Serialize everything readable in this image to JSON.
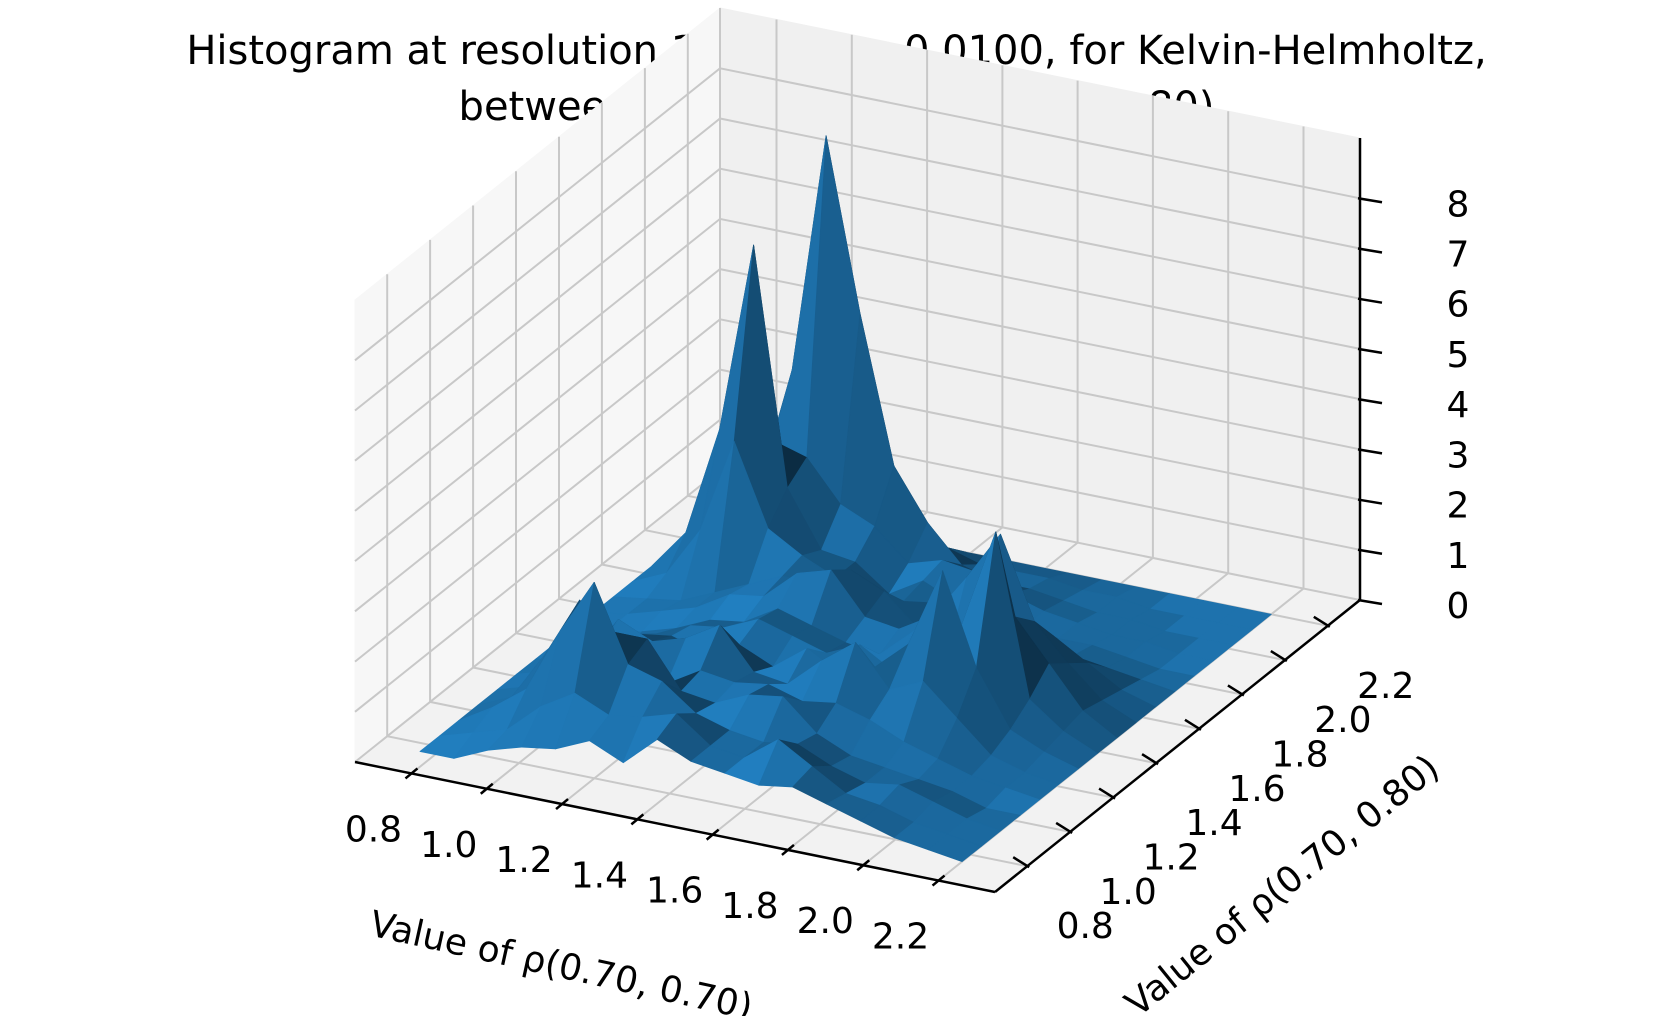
{
  "chart_data": {
    "type": "surface",
    "title_line1": "Histogram at resolution 1024, , ε = 0.0100, for Kelvin-Helmholtz,",
    "title_line2": "between (0.70, 0.70) and (0.70, 0.80)",
    "xlabel": "Value of ρ(0.70, 0.70)",
    "ylabel": "Value of ρ(0.70, 0.80)",
    "xlim": [
      0.65,
      2.35
    ],
    "ylim": [
      0.65,
      2.35
    ],
    "zlim": [
      0,
      9.2
    ],
    "x_ticks": [
      0.8,
      1.0,
      1.2,
      1.4,
      1.6,
      1.8,
      2.0,
      2.2
    ],
    "x_tick_labels": [
      "0.8",
      "1.0",
      "1.2",
      "1.4",
      "1.6",
      "1.8",
      "2.0",
      "2.2"
    ],
    "y_ticks": [
      0.8,
      1.0,
      1.2,
      1.4,
      1.6,
      1.8,
      2.0,
      2.2
    ],
    "y_tick_labels": [
      "0.8",
      "1.0",
      "1.2",
      "1.4",
      "1.6",
      "1.8",
      "2.0",
      "2.2"
    ],
    "z_ticks": [
      0,
      1,
      2,
      3,
      4,
      5,
      6,
      7,
      8
    ],
    "z_tick_labels": [
      "0",
      "1",
      "2",
      "3",
      "4",
      "5",
      "6",
      "7",
      "8"
    ],
    "grid": true,
    "surface_color": "#1f77b4",
    "grid_x": [
      0.76,
      0.85,
      0.94,
      1.03,
      1.12,
      1.21,
      1.3,
      1.39,
      1.48,
      1.57,
      1.66,
      1.75,
      1.84,
      1.93,
      2.02,
      2.11,
      2.2
    ],
    "grid_y": [
      0.76,
      0.85,
      0.94,
      1.03,
      1.12,
      1.21,
      1.3,
      1.39,
      1.48,
      1.57,
      1.66,
      1.75,
      1.84,
      1.93,
      2.02,
      2.11,
      2.2
    ],
    "z_values": [
      [
        0,
        0,
        0.3,
        0.5,
        0.6,
        0.9,
        0.6,
        1.2,
        0.9,
        0.8,
        0.7,
        0.8,
        0.6,
        0.4,
        0.2,
        0.1,
        0
      ],
      [
        0,
        0.2,
        0.4,
        1.0,
        1.4,
        1.1,
        1.2,
        1.4,
        0.9,
        0.8,
        1.3,
        0.9,
        0.5,
        0.4,
        0.2,
        0.1,
        0
      ],
      [
        0,
        0.4,
        0.9,
        2.2,
        3.3,
        1.8,
        1.6,
        1.1,
        0.9,
        0.8,
        0.9,
        0.6,
        0.4,
        0.5,
        0.3,
        0.1,
        0
      ],
      [
        0,
        0.3,
        1.3,
        2.5,
        2.0,
        2.0,
        1.1,
        1.0,
        1.3,
        1.4,
        0.8,
        0.5,
        0.4,
        0.3,
        0.2,
        0,
        0
      ],
      [
        0,
        0.2,
        0.9,
        1.2,
        1.4,
        0.8,
        1.2,
        1.1,
        1.2,
        1.0,
        1.1,
        0.9,
        0.6,
        0.4,
        0.2,
        0.1,
        0
      ],
      [
        0,
        0.2,
        0.5,
        1.5,
        1.2,
        1.4,
        1.8,
        1.0,
        0.9,
        1.5,
        2.0,
        1.2,
        1.5,
        0.9,
        0.3,
        0.1,
        0
      ],
      [
        0,
        0.1,
        0.3,
        0.9,
        1.0,
        0.8,
        1.1,
        0.8,
        1.3,
        0.9,
        1.2,
        1.8,
        3.4,
        1.6,
        0.5,
        0.2,
        0
      ],
      [
        0,
        0.1,
        0.2,
        0.6,
        0.9,
        1.0,
        1.3,
        1.1,
        0.9,
        1.2,
        0.8,
        1.5,
        2.0,
        4.0,
        0.8,
        0.3,
        0
      ],
      [
        0,
        0.1,
        0.2,
        0.4,
        0.7,
        0.8,
        1.2,
        1.0,
        0.8,
        0.7,
        1.3,
        1.0,
        1.7,
        2.0,
        1.2,
        0.4,
        0
      ],
      [
        0,
        0.1,
        0.3,
        0.5,
        0.9,
        1.0,
        1.6,
        1.8,
        1.0,
        0.9,
        1.3,
        2.2,
        3.2,
        1.6,
        0.9,
        0.3,
        0
      ],
      [
        0,
        0.1,
        0.2,
        0.5,
        0.8,
        1.1,
        1.1,
        1.5,
        1.2,
        0.6,
        0.9,
        1.7,
        1.2,
        1.0,
        0.6,
        0.2,
        0
      ],
      [
        0,
        0.3,
        1.3,
        3.2,
        1.6,
        1.2,
        0.9,
        0.8,
        0.7,
        0.8,
        0.6,
        0.4,
        0.3,
        0.3,
        0.2,
        0.1,
        0
      ],
      [
        0,
        0.8,
        3.0,
        6.8,
        2.1,
        1.0,
        0.9,
        0.4,
        0.8,
        0.5,
        0.4,
        0.3,
        0.2,
        0.2,
        0.1,
        0,
        0
      ],
      [
        0,
        0.6,
        2.2,
        2.6,
        2.4,
        1.6,
        1.3,
        0.7,
        0.9,
        0.8,
        0.5,
        0.3,
        0.2,
        0.1,
        0.1,
        0,
        0
      ],
      [
        0,
        0.3,
        1.2,
        3.7,
        8.5,
        5.1,
        2.2,
        1.2,
        0.5,
        0.3,
        0.3,
        0.2,
        0.1,
        0.1,
        0,
        0,
        0
      ],
      [
        0,
        0.1,
        0.4,
        1.1,
        1.6,
        0.9,
        0.6,
        0.4,
        0.2,
        0.2,
        0.2,
        0.1,
        0.1,
        0,
        0,
        0,
        0
      ],
      [
        0,
        0,
        0,
        0,
        0,
        0,
        0,
        0,
        0,
        0,
        0,
        0,
        0,
        0,
        0,
        0,
        0
      ]
    ]
  }
}
